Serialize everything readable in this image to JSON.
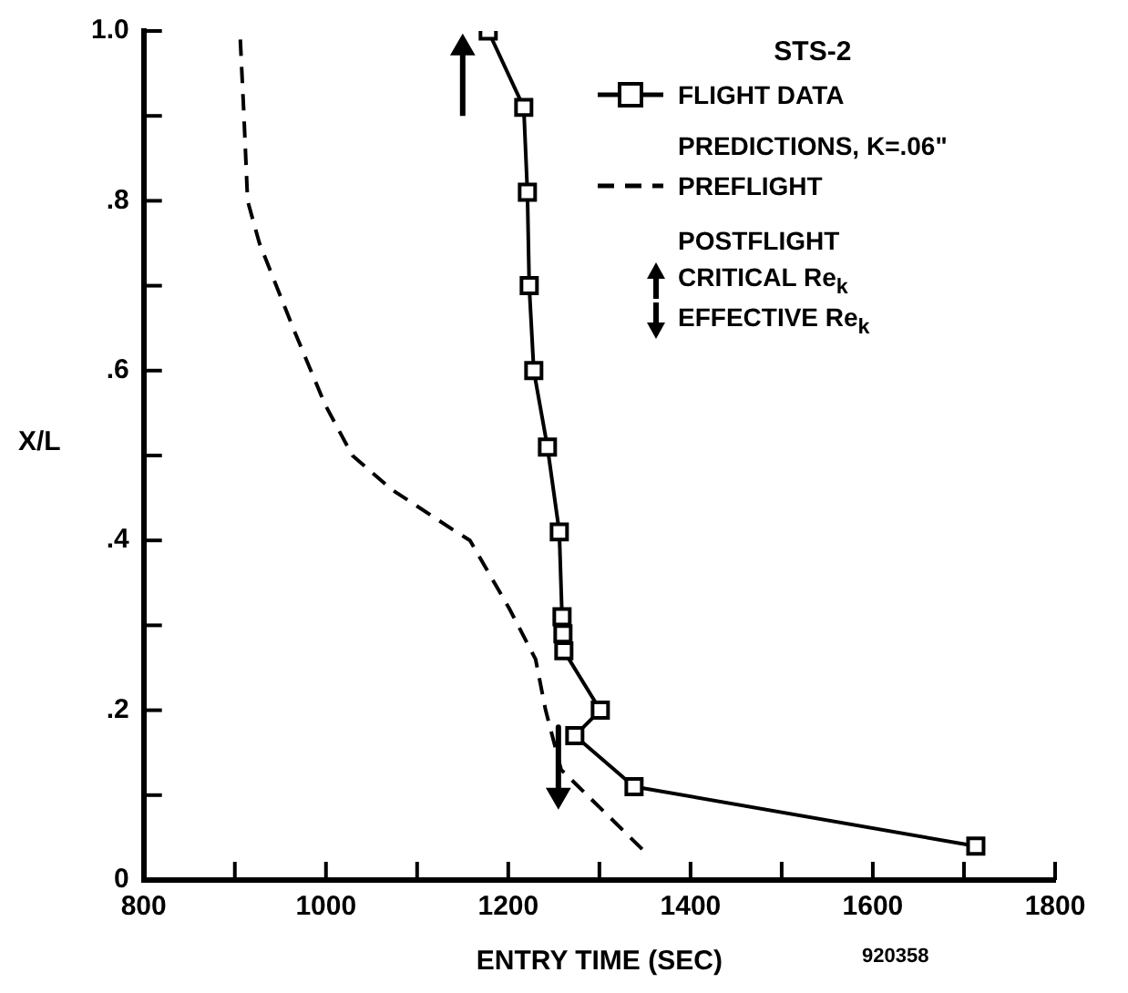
{
  "chart_data": {
    "type": "line",
    "title": "STS-2",
    "xlabel": "ENTRY TIME (SEC)",
    "ylabel": "X/L",
    "xlim": [
      800,
      1800
    ],
    "xticks": [
      800,
      {
        "value": 900,
        "label": null
      },
      1000,
      {
        "value": 1100,
        "label": null
      },
      1200,
      {
        "value": 1300,
        "label": null
      },
      1400,
      {
        "value": 1500,
        "label": null
      },
      1600,
      {
        "value": 1700,
        "label": null
      },
      1800
    ],
    "ylim": [
      0,
      1.0
    ],
    "yticks": [
      0,
      {
        "value": 0.1,
        "label": null
      },
      {
        "value": 0.2,
        "label": ".2"
      },
      {
        "value": 0.3,
        "label": null
      },
      {
        "value": 0.4,
        "label": ".4"
      },
      {
        "value": 0.5,
        "label": null
      },
      {
        "value": 0.6,
        "label": ".6"
      },
      {
        "value": 0.7,
        "label": null
      },
      {
        "value": 0.8,
        "label": ".8"
      },
      {
        "value": 0.9,
        "label": null
      },
      {
        "value": 1.0,
        "label": "1.0"
      }
    ],
    "grid": false,
    "legend": "top right",
    "annotations": [
      "PREDICTIONS, K=.06\"",
      "POSTFLIGHT",
      "920358"
    ],
    "series": [
      {
        "name": "FLIGHT DATA",
        "color": "#000000",
        "marker": "square",
        "line_style": "solid",
        "x": [
          1178,
          1217,
          1221,
          1223,
          1228,
          1243,
          1256,
          1259,
          1260,
          1261,
          1301,
          1273,
          1338,
          1713
        ],
        "values": [
          1.0,
          0.91,
          0.81,
          0.7,
          0.6,
          0.51,
          0.41,
          0.31,
          0.29,
          0.27,
          0.2,
          0.17,
          0.11,
          0.04
        ]
      },
      {
        "name": "PREFLIGHT",
        "color": "#000000",
        "marker": "none",
        "line_style": "dashed",
        "x": [
          906,
          910,
          914,
          927,
          964,
          999,
          1029,
          1072,
          1143,
          1158,
          1201,
          1230,
          1241,
          1258,
          1353
        ],
        "values": [
          0.99,
          0.9,
          0.8,
          0.75,
          0.65,
          0.56,
          0.5,
          0.46,
          0.41,
          0.4,
          0.32,
          0.26,
          0.2,
          0.13,
          0.03
        ]
      },
      {
        "name": "CRITICAL Re$_{k}$",
        "color": "#000000",
        "marker": "triangle",
        "line_style": "solid",
        "x": [
          1150,
          1150
        ],
        "values": [
          0.9,
          0.98
        ]
      },
      {
        "name": "EFFECTIVE Re$_{k}$",
        "color": "#000000",
        "marker": "triangle",
        "line_style": "solid",
        "x": [
          1255,
          1255
        ],
        "values": [
          0.18,
          0.1
        ]
      }
    ]
  }
}
